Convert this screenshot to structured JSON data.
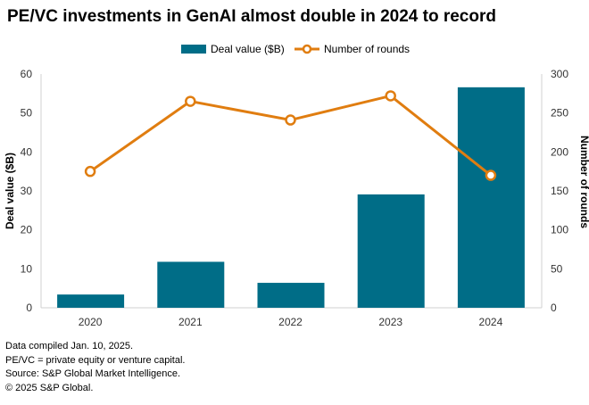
{
  "chart_data": {
    "type": "bar+line",
    "title": "PE/VC investments in GenAI almost double in 2024 to record",
    "categories": [
      "2020",
      "2021",
      "2022",
      "2023",
      "2024"
    ],
    "series": [
      {
        "name": "Deal value ($B)",
        "type": "bar",
        "axis": "left",
        "values": [
          3.4,
          11.8,
          6.4,
          29.1,
          56.6
        ],
        "color": "#006d87"
      },
      {
        "name": "Number of rounds",
        "type": "line",
        "axis": "right",
        "values": [
          175,
          265,
          241,
          272,
          170
        ],
        "color": "#e07d10"
      }
    ],
    "ylabel": "Deal value ($B)",
    "y2label": "Number of rounds",
    "ylim": [
      0,
      60
    ],
    "y2lim": [
      0,
      300
    ],
    "yticks": [
      "0",
      "10",
      "20",
      "30",
      "40",
      "50",
      "60"
    ],
    "y2ticks": [
      "0",
      "50",
      "100",
      "150",
      "200",
      "250",
      "300"
    ],
    "grid": false,
    "legend": "top-center"
  },
  "notes": [
    "Data compiled Jan. 10, 2025.",
    "PE/VC = private equity or venture capital.",
    "Source: S&P Global Market Intelligence.",
    "© 2025 S&P Global."
  ]
}
